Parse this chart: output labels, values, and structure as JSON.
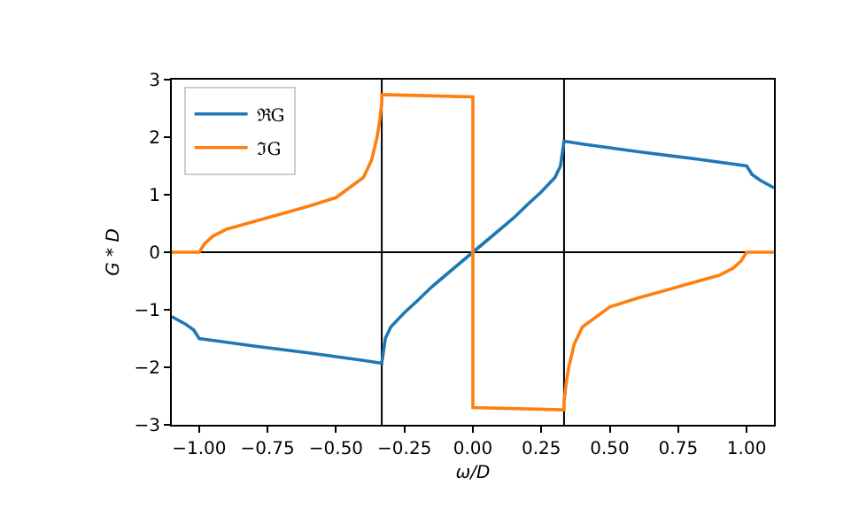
{
  "chart_data": {
    "type": "line",
    "xlabel": "ω/D",
    "ylabel": "G * D",
    "series": [
      {
        "name": "ℜG",
        "color": "#1f77b4",
        "x": [
          -1.1,
          -1.05,
          -1.02,
          -1,
          -0.8,
          -0.6,
          -0.4,
          -0.333,
          -0.32,
          -0.3,
          -0.25,
          -0.2,
          -0.15,
          -0.1,
          -0.05,
          0,
          0.05,
          0.1,
          0.15,
          0.2,
          0.25,
          0.3,
          0.32,
          0.333,
          0.4,
          0.6,
          0.8,
          1,
          1.02,
          1.05,
          1.1
        ],
        "values": [
          -1.12,
          -1.25,
          -1.35,
          -1.5,
          -1.63,
          -1.75,
          -1.88,
          -1.93,
          -1.5,
          -1.3,
          -1.05,
          -0.83,
          -0.6,
          -0.4,
          -0.2,
          0,
          0.2,
          0.4,
          0.6,
          0.83,
          1.05,
          1.3,
          1.5,
          1.93,
          1.88,
          1.75,
          1.63,
          1.5,
          1.35,
          1.25,
          1.12
        ]
      },
      {
        "name": "ℑG",
        "color": "#ff7f0e",
        "x": [
          -1.1,
          -1,
          -0.98,
          -0.95,
          -0.9,
          -0.75,
          -0.6,
          -0.5,
          -0.4,
          -0.37,
          -0.35,
          -0.34,
          -0.333,
          -0.333,
          0,
          0,
          0.333,
          0.333,
          0.34,
          0.35,
          0.37,
          0.4,
          0.5,
          0.6,
          0.75,
          0.9,
          0.95,
          0.98,
          1,
          1.1
        ],
        "values": [
          0,
          0,
          0.15,
          0.28,
          0.4,
          0.6,
          0.8,
          0.95,
          1.3,
          1.6,
          2.0,
          2.3,
          2.6,
          2.74,
          2.7,
          -2.7,
          -2.74,
          -2.6,
          -2.3,
          -2.0,
          -1.6,
          -1.3,
          -0.95,
          -0.8,
          -0.6,
          -0.4,
          -0.28,
          -0.15,
          0,
          0
        ]
      }
    ],
    "xlim": [
      -1.1,
      1.1
    ],
    "xticks": [
      {
        "value": -1,
        "label": "−1.00"
      },
      {
        "value": -0.75,
        "label": "−0.75"
      },
      {
        "value": -0.5,
        "label": "−0.50"
      },
      {
        "value": -0.25,
        "label": "−0.25"
      },
      {
        "value": 0,
        "label": "0.00"
      },
      {
        "value": 0.25,
        "label": "0.25"
      },
      {
        "value": 0.5,
        "label": "0.50"
      },
      {
        "value": 0.75,
        "label": "0.75"
      },
      {
        "value": 1,
        "label": "1.00"
      }
    ],
    "ylim": [
      -3,
      3
    ],
    "yticks": [
      {
        "value": -3,
        "label": "−3"
      },
      {
        "value": -2,
        "label": "−2"
      },
      {
        "value": -1,
        "label": "−1"
      },
      0,
      1,
      2,
      3
    ],
    "ref_lines": [
      {
        "axis": "x",
        "value": -0.333,
        "color": "#000000"
      },
      {
        "axis": "x",
        "value": 0.333,
        "color": "#000000"
      },
      {
        "axis": "y",
        "value": 0,
        "color": "#000000"
      }
    ],
    "grid": false,
    "legend": "top left",
    "marker": "none",
    "line_style": "solid"
  }
}
